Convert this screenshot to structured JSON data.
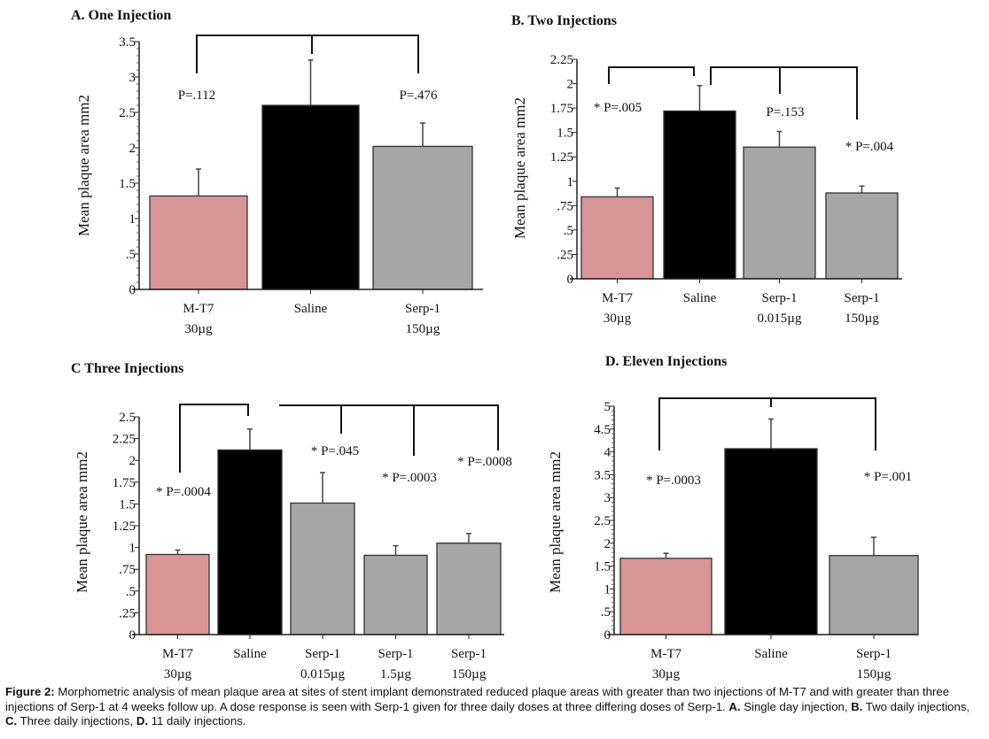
{
  "colors": {
    "mt7": "#d89595",
    "saline": "#000000",
    "serp": "#a6a6a6",
    "axis": "#222222"
  },
  "chart_data": [
    {
      "type": "bar",
      "title": "A.  One Injection",
      "ylabel": "Mean plaque area mm2",
      "ylim": [
        0,
        3.5
      ],
      "yticks": [
        "0",
        ".5",
        "1",
        "1.5",
        "2",
        "2.5",
        "3",
        "3.5"
      ],
      "ytick_values": [
        0,
        0.5,
        1,
        1.5,
        2,
        2.5,
        3,
        3.5
      ],
      "categories": [
        [
          "M-T7",
          "30µg"
        ],
        [
          "Saline",
          ""
        ],
        [
          "Serp-1",
          "150µg"
        ]
      ],
      "values": [
        1.32,
        2.6,
        2.02
      ],
      "error_upper": [
        1.7,
        3.24,
        2.35
      ],
      "bar_colors": [
        "mt7",
        "saline",
        "serp"
      ],
      "comparisons": [
        {
          "bars": [
            0,
            1
          ],
          "p": "P=.112"
        },
        {
          "bars": [
            1,
            2
          ],
          "p": "P=.476"
        }
      ]
    },
    {
      "type": "bar",
      "title": "B. Two Injections",
      "ylabel": "Mean plaque area mm2",
      "ylim": [
        0,
        2.25
      ],
      "yticks": [
        "0",
        ".25",
        ".5",
        ".75",
        "1",
        "1.25",
        "1.5",
        "1.75",
        "2",
        "2.25"
      ],
      "ytick_values": [
        0,
        0.25,
        0.5,
        0.75,
        1,
        1.25,
        1.5,
        1.75,
        2,
        2.25
      ],
      "categories": [
        [
          "M-T7",
          "30µg"
        ],
        [
          "Saline",
          ""
        ],
        [
          "Serp-1",
          "0.015µg"
        ],
        [
          "Serp-1",
          "150µg"
        ]
      ],
      "values": [
        0.84,
        1.72,
        1.35,
        0.88
      ],
      "error_upper": [
        0.93,
        1.98,
        1.51,
        0.95
      ],
      "bar_colors": [
        "mt7",
        "saline",
        "serp",
        "serp"
      ],
      "comparisons": [
        {
          "bars": [
            0,
            1
          ],
          "p": "* P=.005"
        },
        {
          "bars": [
            1,
            2
          ],
          "p": "P=.153"
        },
        {
          "bars": [
            1,
            3
          ],
          "p": "* P=.004"
        }
      ]
    },
    {
      "type": "bar",
      "title": "C Three Injections",
      "ylabel": "Mean plaque area mm2",
      "ylim": [
        0,
        2.5
      ],
      "yticks": [
        "0",
        ".25",
        ".5",
        ".75",
        "1",
        "1.25",
        "1.5",
        "1.75",
        "2",
        "2.25",
        "2.5"
      ],
      "ytick_values": [
        0,
        0.25,
        0.5,
        0.75,
        1,
        1.25,
        1.5,
        1.75,
        2,
        2.25,
        2.5
      ],
      "categories": [
        [
          "M-T7",
          "30µg"
        ],
        [
          "Saline",
          ""
        ],
        [
          "Serp-1",
          "0.015µg"
        ],
        [
          "Serp-1",
          "1.5µg"
        ],
        [
          "Serp-1",
          "150µg"
        ]
      ],
      "values": [
        0.92,
        2.12,
        1.51,
        0.91,
        1.05
      ],
      "error_upper": [
        0.97,
        2.36,
        1.86,
        1.02,
        1.16
      ],
      "bar_colors": [
        "mt7",
        "saline",
        "serp",
        "serp",
        "serp"
      ],
      "comparisons": [
        {
          "bars": [
            0,
            1
          ],
          "p": "* P=.0004"
        },
        {
          "bars": [
            1,
            2
          ],
          "p": "* P=.045"
        },
        {
          "bars": [
            1,
            3
          ],
          "p": "* P=.0003"
        },
        {
          "bars": [
            1,
            4
          ],
          "p": "* P=.0008"
        }
      ]
    },
    {
      "type": "bar",
      "title": "D. Eleven  Injections",
      "ylabel": "Mean plaque area mm2",
      "ylim": [
        0,
        5
      ],
      "yticks": [
        "0",
        ".5",
        "1",
        "1.5",
        "2",
        "2.5",
        "3",
        "3.5",
        "4",
        "4.5",
        "5"
      ],
      "ytick_values": [
        0,
        0.5,
        1,
        1.5,
        2,
        2.5,
        3,
        3.5,
        4,
        4.5,
        5
      ],
      "categories": [
        [
          "M-T7",
          "30µg"
        ],
        [
          "Saline",
          ""
        ],
        [
          "Serp-1",
          "150µg"
        ]
      ],
      "values": [
        1.67,
        4.07,
        1.73
      ],
      "error_upper": [
        1.78,
        4.72,
        2.13
      ],
      "bar_colors": [
        "mt7",
        "saline",
        "serp"
      ],
      "comparisons": [
        {
          "bars": [
            0,
            1
          ],
          "p": "* P=.0003"
        },
        {
          "bars": [
            1,
            2
          ],
          "p": "* P=.001"
        }
      ]
    }
  ],
  "caption": [
    {
      "text": "Figure 2:",
      "bold": true
    },
    {
      "text": " Morphometric analysis of mean plaque area at sites of stent implant demonstrated reduced plaque areas with greater than two injections of M-T7 and with greater than three injections of Serp-1 at 4 weeks follow up. A dose response is seen with Serp-1 given for three daily doses at three differing doses of Serp-1. ",
      "bold": false
    },
    {
      "text": "A.",
      "bold": true
    },
    {
      "text": " Single day injection, ",
      "bold": false
    },
    {
      "text": "B.",
      "bold": true
    },
    {
      "text": " Two daily injections, ",
      "bold": false
    },
    {
      "text": "C.",
      "bold": true
    },
    {
      "text": " Three daily injections, ",
      "bold": false
    },
    {
      "text": "D.",
      "bold": true
    },
    {
      "text": " 11 daily injections.",
      "bold": false
    }
  ]
}
